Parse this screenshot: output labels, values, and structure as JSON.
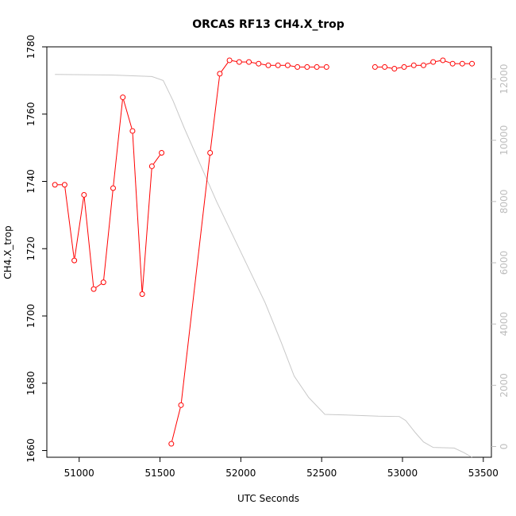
{
  "chart_data": {
    "type": "line",
    "title": "ORCAS RF13 CH4.X_trop",
    "xlabel": "UTC Seconds",
    "ylabel": "CH4.X_trop",
    "xlim": [
      50800,
      53550
    ],
    "ylim": [
      1658,
      1780
    ],
    "y2lim": [
      -350,
      13050
    ],
    "x_ticks": [
      51000,
      51500,
      52000,
      52500,
      53000,
      53500
    ],
    "y_ticks": [
      1660,
      1680,
      1700,
      1720,
      1740,
      1760,
      1780
    ],
    "y2_ticks": [
      0,
      2000,
      4000,
      6000,
      8000,
      10000,
      12000
    ],
    "grid": false,
    "series": [
      {
        "axis": "left",
        "color": "#ff0000",
        "marker": "open-circle",
        "segments": [
          [
            [
              50850,
              1739
            ],
            [
              50910,
              1739
            ],
            [
              50970,
              1716.5
            ],
            [
              51030,
              1736
            ],
            [
              51090,
              1708
            ],
            [
              51150,
              1710
            ],
            [
              51210,
              1738
            ],
            [
              51270,
              1765
            ],
            [
              51330,
              1755
            ],
            [
              51390,
              1706.5
            ],
            [
              51450,
              1744.5
            ],
            [
              51510,
              1748.5
            ]
          ],
          [
            [
              51570,
              1662
            ],
            [
              51630,
              1673.5
            ],
            [
              51810,
              1748.5
            ],
            [
              51870,
              1772
            ],
            [
              51930,
              1776
            ],
            [
              51990,
              1775.5
            ],
            [
              52050,
              1775.5
            ],
            [
              52110,
              1775
            ],
            [
              52170,
              1774.5
            ],
            [
              52230,
              1774.5
            ],
            [
              52290,
              1774.5
            ],
            [
              52350,
              1774
            ],
            [
              52410,
              1774
            ],
            [
              52470,
              1774
            ],
            [
              52530,
              1774
            ]
          ],
          [
            [
              52830,
              1774
            ],
            [
              52890,
              1774
            ],
            [
              52950,
              1773.5
            ],
            [
              53010,
              1774
            ],
            [
              53070,
              1774.5
            ],
            [
              53130,
              1774.5
            ],
            [
              53190,
              1775.5
            ],
            [
              53250,
              1776
            ],
            [
              53310,
              1775
            ],
            [
              53370,
              1775
            ],
            [
              53430,
              1775
            ]
          ]
        ]
      },
      {
        "axis": "right",
        "color": "#c8c8c8",
        "marker": "none",
        "points": [
          [
            50850,
            12150
          ],
          [
            51200,
            12130
          ],
          [
            51450,
            12080
          ],
          [
            51520,
            11950
          ],
          [
            51580,
            11300
          ],
          [
            51650,
            10400
          ],
          [
            51750,
            9200
          ],
          [
            51850,
            8000
          ],
          [
            51950,
            6900
          ],
          [
            52050,
            5800
          ],
          [
            52150,
            4700
          ],
          [
            52250,
            3400
          ],
          [
            52330,
            2300
          ],
          [
            52420,
            1600
          ],
          [
            52520,
            1050
          ],
          [
            52650,
            1030
          ],
          [
            52850,
            990
          ],
          [
            52980,
            980
          ],
          [
            53020,
            850
          ],
          [
            53080,
            450
          ],
          [
            53130,
            150
          ],
          [
            53190,
            -30
          ],
          [
            53320,
            -50
          ],
          [
            53380,
            -200
          ],
          [
            53430,
            -350
          ]
        ]
      }
    ]
  }
}
